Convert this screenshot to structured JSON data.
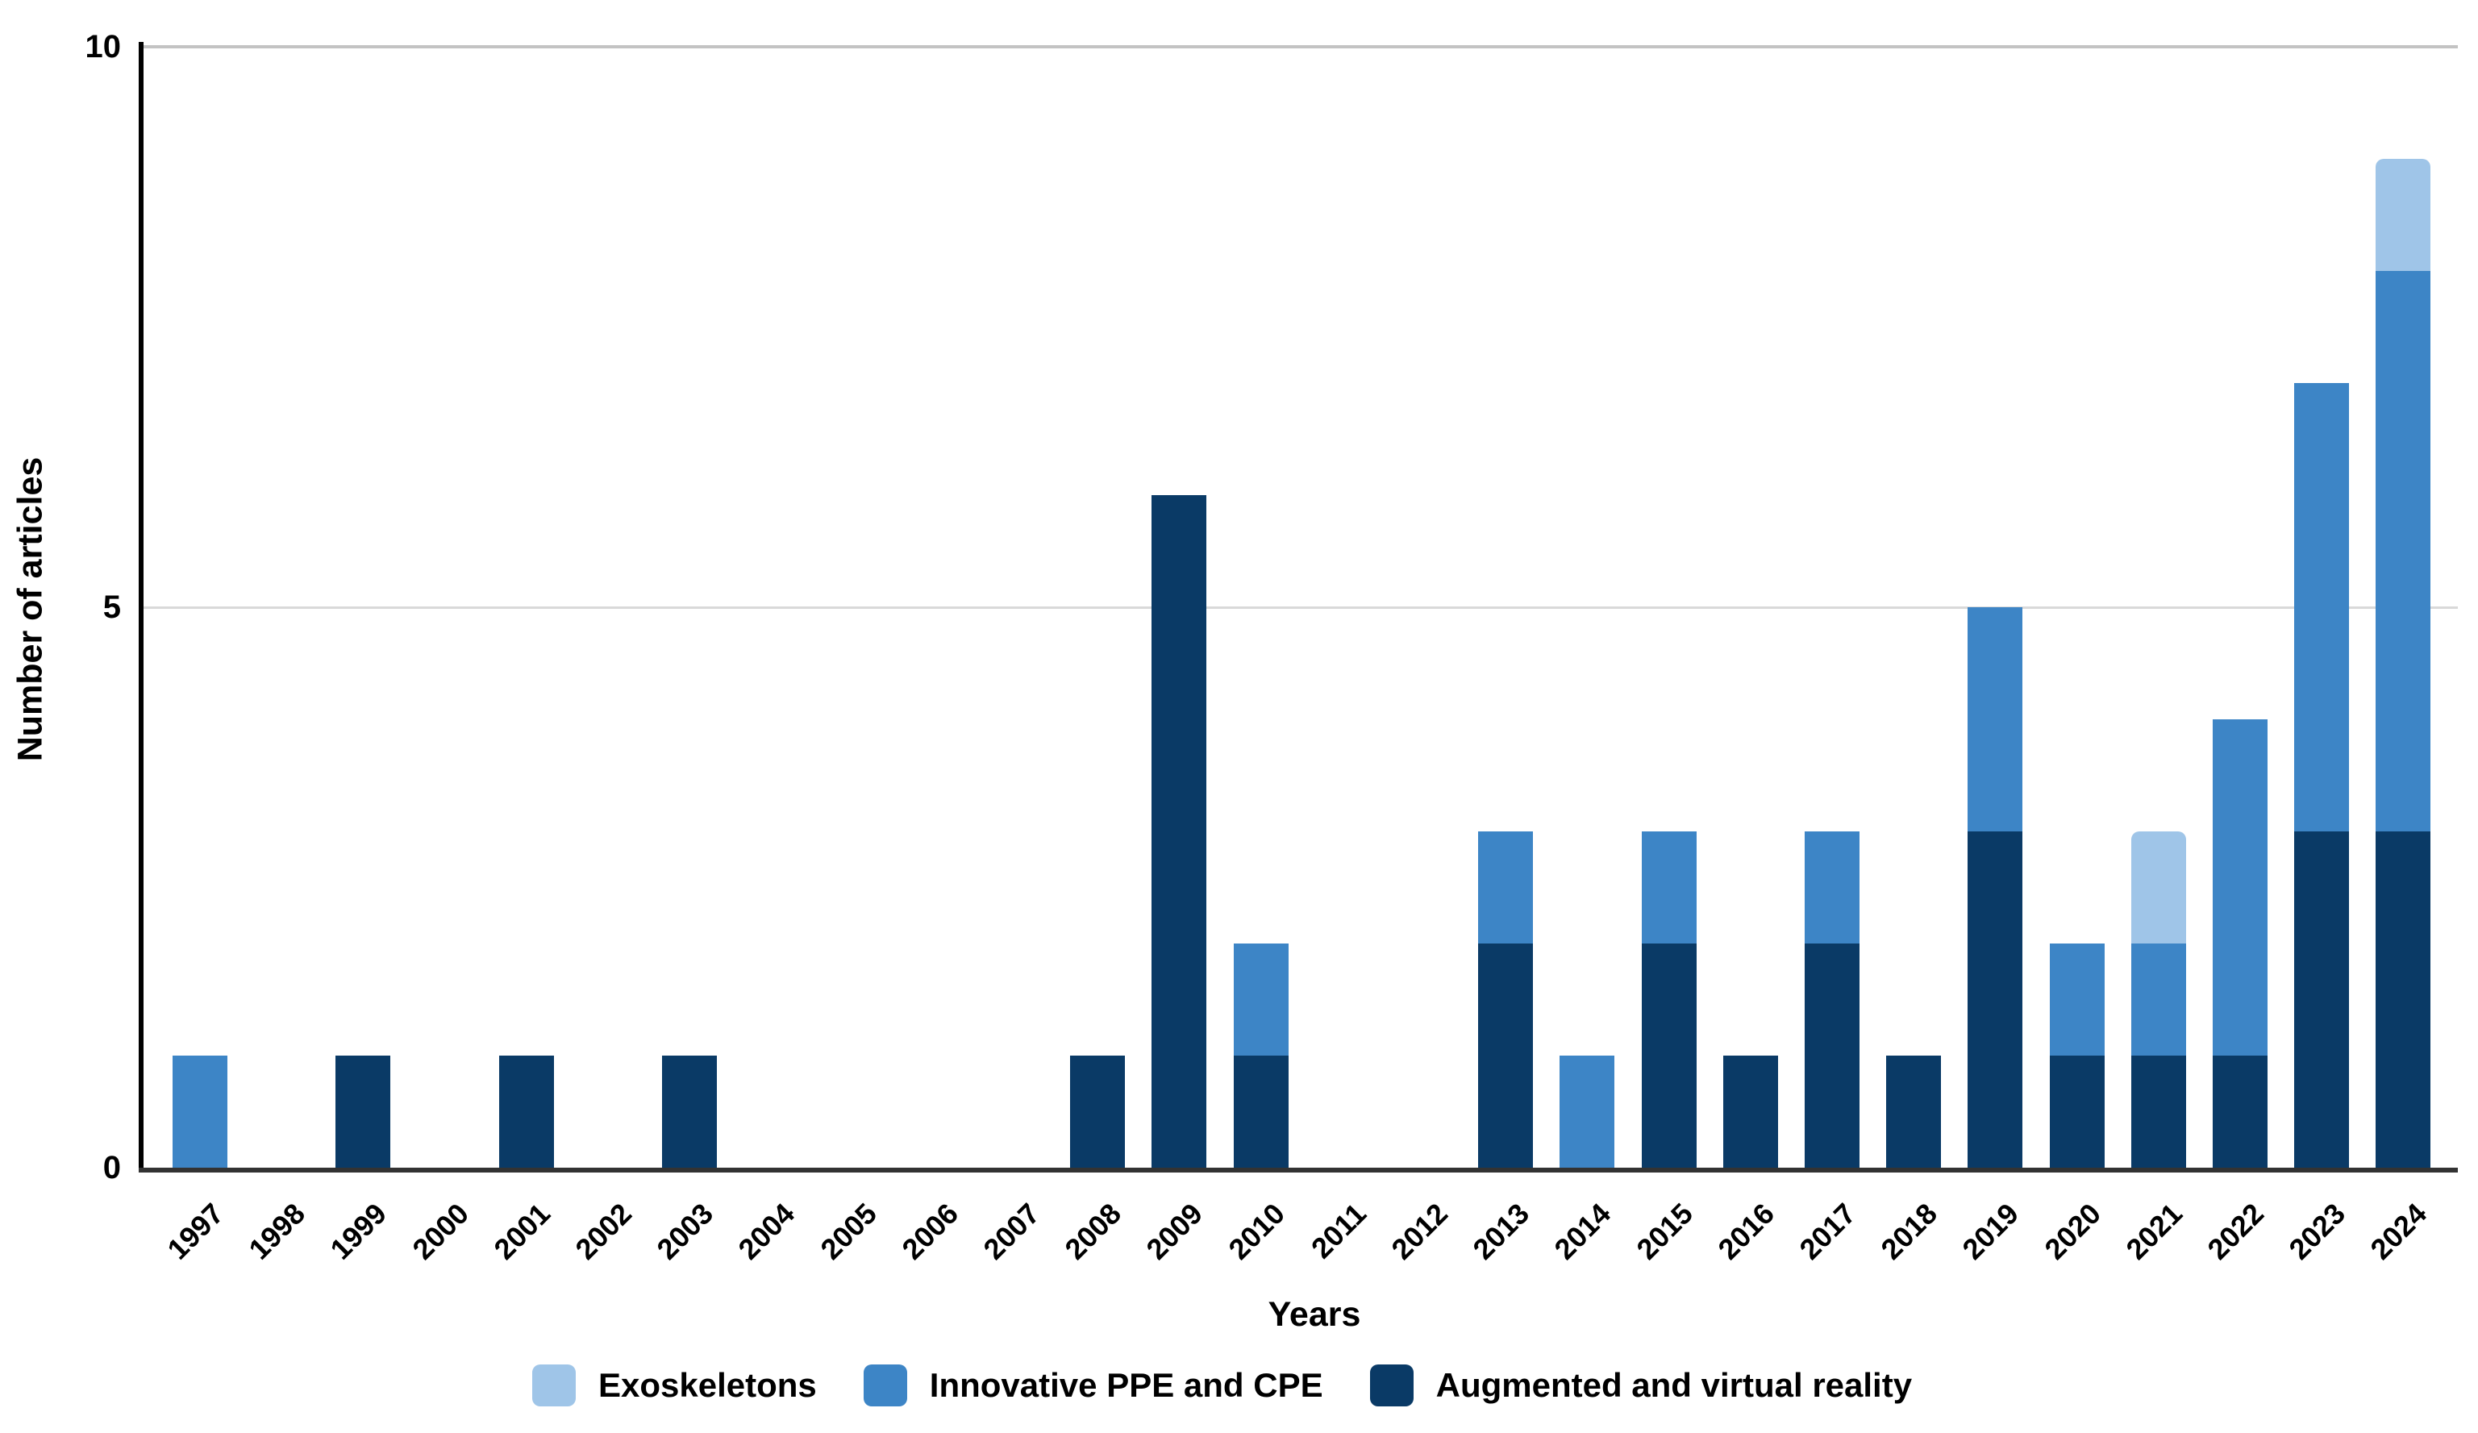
{
  "chart_data": {
    "type": "bar",
    "stacked": true,
    "title": "",
    "xlabel": "Years",
    "ylabel": "Number of articles",
    "ylim": [
      0,
      10
    ],
    "y_ticks": [
      0,
      5,
      10
    ],
    "grid": "horizontal-major-only",
    "legend_position": "bottom",
    "categories": [
      "1997",
      "1998",
      "1999",
      "2000",
      "2001",
      "2002",
      "2003",
      "2004",
      "2005",
      "2006",
      "2007",
      "2008",
      "2009",
      "2010",
      "2011",
      "2012",
      "2013",
      "2014",
      "2015",
      "2016",
      "2017",
      "2018",
      "2019",
      "2020",
      "2021",
      "2022",
      "2023",
      "2024"
    ],
    "series": [
      {
        "name": "Exoskeletons",
        "color": "#9FC5E8",
        "values": [
          0,
          0,
          0,
          0,
          0,
          0,
          0,
          0,
          0,
          0,
          0,
          0,
          0,
          0,
          0,
          0,
          0,
          0,
          0,
          0,
          0,
          0,
          0,
          0,
          1,
          0,
          0,
          1
        ]
      },
      {
        "name": "Innovative PPE and CPE",
        "color": "#3D85C6",
        "values": [
          1,
          0,
          0,
          0,
          0,
          0,
          0,
          0,
          0,
          0,
          0,
          0,
          0,
          1,
          0,
          0,
          1,
          1,
          1,
          0,
          1,
          0,
          2,
          1,
          1,
          3,
          4,
          5
        ]
      },
      {
        "name": "Augmented and virtual reality",
        "color": "#0A3A66",
        "values": [
          0,
          0,
          1,
          0,
          1,
          0,
          1,
          0,
          0,
          0,
          0,
          1,
          6,
          1,
          0,
          0,
          2,
          0,
          2,
          1,
          2,
          1,
          3,
          1,
          1,
          1,
          3,
          3
        ]
      }
    ]
  }
}
